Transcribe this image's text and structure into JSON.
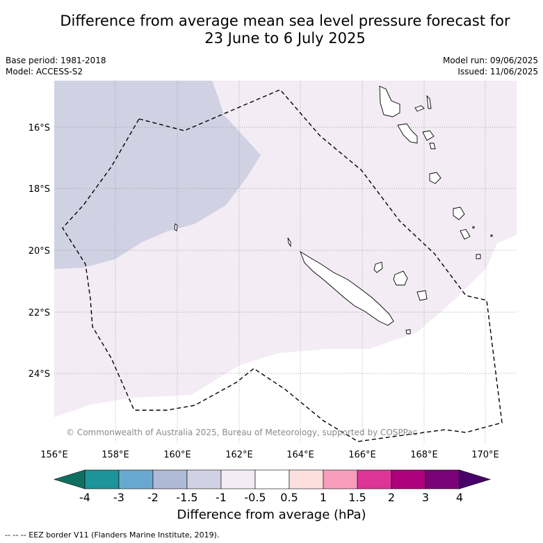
{
  "title": {
    "line1": "Difference from average mean sea level pressure forecast for",
    "line2": "23 June to 6 July 2025"
  },
  "meta": {
    "base_period": "Base period: 1981-2018",
    "model": "Model: ACCESS-S2",
    "model_run": "Model run: 09/06/2025",
    "issued": "Issued: 11/06/2025"
  },
  "axes": {
    "lat_labels": [
      "16°S",
      "18°S",
      "20°S",
      "22°S",
      "24°S"
    ],
    "lon_labels": [
      "156°E",
      "158°E",
      "160°E",
      "162°E",
      "164°E",
      "166°E",
      "168°E",
      "170°E"
    ]
  },
  "copyright": "© Commonwealth of Australia 2025, Bureau of Meteorology, supported by COSPPac",
  "colorbar": {
    "ticks": [
      "-4",
      "-3",
      "-2",
      "-1.5",
      "-1",
      "-0.5",
      "0.5",
      "1",
      "1.5",
      "2",
      "3",
      "4"
    ],
    "colors": [
      "#0f6f63",
      "#1c9499",
      "#69a9d1",
      "#afbad6",
      "#d1d1e4",
      "#f3ecf4",
      "#ffffff",
      "#fde0dd",
      "#f99dbc",
      "#dd3497",
      "#ae017e",
      "#7a0177",
      "#49006a"
    ],
    "label": "Difference from average (hPa)"
  },
  "legend": {
    "eez": "--  --  -- EEZ border V11 (Flanders Marine Institute, 2019)."
  }
}
